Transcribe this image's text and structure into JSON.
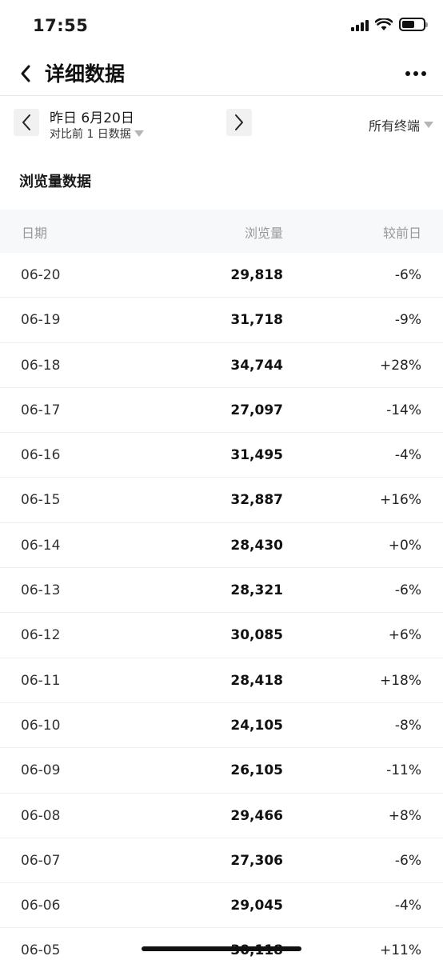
{
  "status": {
    "time": "17:55"
  },
  "nav": {
    "title": "详细数据"
  },
  "filter": {
    "date_label": "昨日 6月20日",
    "compare_label": "对比前 1 日数据",
    "terminal_label": "所有终端"
  },
  "section": {
    "title": "浏览量数据"
  },
  "table": {
    "headers": {
      "date": "日期",
      "views": "浏览量",
      "change": "较前日"
    },
    "rows": [
      {
        "date": "06-20",
        "views": "29,818",
        "change": "-6%"
      },
      {
        "date": "06-19",
        "views": "31,718",
        "change": "-9%"
      },
      {
        "date": "06-18",
        "views": "34,744",
        "change": "+28%"
      },
      {
        "date": "06-17",
        "views": "27,097",
        "change": "-14%"
      },
      {
        "date": "06-16",
        "views": "31,495",
        "change": "-4%"
      },
      {
        "date": "06-15",
        "views": "32,887",
        "change": "+16%"
      },
      {
        "date": "06-14",
        "views": "28,430",
        "change": "+0%"
      },
      {
        "date": "06-13",
        "views": "28,321",
        "change": "-6%"
      },
      {
        "date": "06-12",
        "views": "30,085",
        "change": "+6%"
      },
      {
        "date": "06-11",
        "views": "28,418",
        "change": "+18%"
      },
      {
        "date": "06-10",
        "views": "24,105",
        "change": "-8%"
      },
      {
        "date": "06-09",
        "views": "26,105",
        "change": "-11%"
      },
      {
        "date": "06-08",
        "views": "29,466",
        "change": "+8%"
      },
      {
        "date": "06-07",
        "views": "27,306",
        "change": "-6%"
      },
      {
        "date": "06-06",
        "views": "29,045",
        "change": "-4%"
      },
      {
        "date": "06-05",
        "views": "30,118",
        "change": "+11%"
      }
    ]
  }
}
